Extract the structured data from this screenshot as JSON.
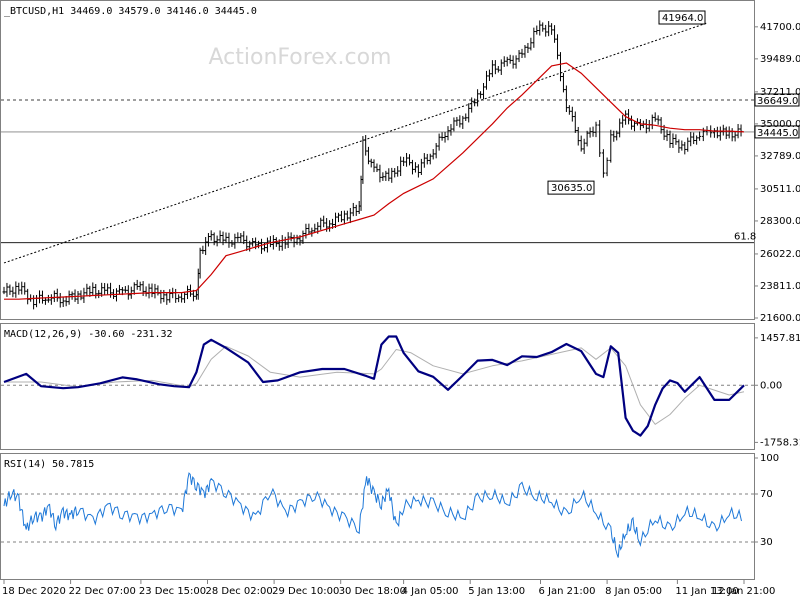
{
  "chart_data": [
    {
      "type": "candlestick",
      "panel": "price",
      "title": "_BTCUSD,H1  34469.0 34579.0 34146.0 34445.0",
      "watermark": "ActionForex.com",
      "y_ticks": [
        41700.0,
        39489.0,
        37211.0,
        35000.0,
        32789.0,
        30511.0,
        28300.0,
        26022.0,
        23811.0,
        21600.0
      ],
      "ylim": [
        21600,
        43000
      ],
      "annotations": [
        {
          "label": "41964.0",
          "x": 95.0,
          "y": 41964
        },
        {
          "label": "30635.0",
          "x": 80.0,
          "y": 30635
        }
      ],
      "price_labels": [
        {
          "label": "36649.0",
          "y": 36649
        },
        {
          "label": "34445.0",
          "y": 34445
        }
      ],
      "fib_label": "61.8",
      "fib_level": 26800,
      "trendline": [
        [
          0,
          25400
        ],
        [
          95,
          41964
        ]
      ],
      "series": [
        {
          "name": "Close",
          "x": [
            0,
            2,
            4,
            6,
            8,
            10,
            12,
            14,
            16,
            18,
            20,
            22,
            24,
            26,
            26.5,
            28,
            30,
            32,
            34,
            36,
            38,
            40,
            42,
            44,
            46,
            48,
            48.5,
            50,
            52,
            54,
            56,
            58,
            60,
            62,
            64,
            66,
            68,
            70,
            72,
            74,
            76,
            78,
            80,
            81,
            82,
            84,
            86,
            88,
            90,
            92,
            94,
            95,
            96,
            98,
            100
          ],
          "values": [
            23400,
            23700,
            22800,
            23100,
            22900,
            23200,
            23500,
            23400,
            23300,
            23700,
            23400,
            23100,
            23200,
            23400,
            26300,
            27200,
            26900,
            27000,
            26500,
            26700,
            26900,
            27200,
            28000,
            28200,
            28700,
            29100,
            33600,
            31800,
            31200,
            32500,
            31900,
            33200,
            34700,
            35400,
            36900,
            38800,
            39200,
            39700,
            41500,
            41700,
            36400,
            33500,
            35000,
            31500,
            34000,
            35400,
            34700,
            35300,
            33800,
            33500,
            34400,
            34700,
            34500,
            34300,
            34445
          ]
        },
        {
          "name": "MA",
          "x": [
            0,
            2,
            4,
            6,
            8,
            10,
            12,
            14,
            16,
            18,
            20,
            22,
            24,
            26,
            28,
            30,
            32,
            34,
            36,
            38,
            40,
            42,
            44,
            46,
            48,
            50,
            52,
            54,
            56,
            58,
            60,
            62,
            64,
            66,
            68,
            70,
            72,
            74,
            76,
            78,
            80,
            82,
            84,
            86,
            88,
            90,
            92,
            94,
            96,
            98,
            100
          ],
          "values": [
            22900,
            22900,
            22950,
            23000,
            23050,
            23100,
            23150,
            23200,
            23250,
            23300,
            23350,
            23350,
            23350,
            23500,
            24600,
            25900,
            26200,
            26500,
            26800,
            27000,
            27200,
            27500,
            27800,
            28100,
            28400,
            28700,
            29500,
            30200,
            30700,
            31200,
            32100,
            33000,
            34000,
            35000,
            36100,
            37000,
            38000,
            39000,
            39200,
            38500,
            37500,
            36500,
            35500,
            35000,
            34900,
            34700,
            34600,
            34600,
            34500,
            34500,
            34450
          ]
        }
      ],
      "x_ticks": [
        "18 Dec 2020",
        "22 Dec 07:00",
        "23 Dec 15:00",
        "28 Dec 02:00",
        "29 Dec 10:00",
        "30 Dec 18:00",
        "4 Jan 05:00",
        "5 Jan 13:00",
        "6 Jan 21:00",
        "8 Jan 05:00",
        "11 Jan 13:00",
        "12 Jan 21:00"
      ],
      "x_tick_positions": [
        0,
        9,
        18.5,
        27.5,
        36.5,
        45.5,
        54,
        63,
        72.5,
        81.5,
        91,
        100
      ]
    },
    {
      "type": "line",
      "panel": "macd",
      "title": "MACD(12,26,9) -30.60 -231.32",
      "y_ticks": [
        1457.81,
        0.0,
        -1758.31
      ],
      "ylim": [
        -1900,
        1700
      ],
      "series": [
        {
          "name": "MACD",
          "x": [
            0,
            3,
            5,
            8,
            10,
            13,
            16,
            18,
            21,
            23,
            25,
            26,
            27,
            28,
            30,
            33,
            35,
            37,
            40,
            43,
            46,
            49,
            50,
            51,
            52,
            53,
            54,
            56,
            58,
            60,
            62,
            64,
            66,
            68,
            70,
            72,
            74,
            76,
            78,
            80,
            81,
            82,
            83,
            84,
            85,
            86,
            87,
            88,
            89,
            90,
            91,
            92,
            94,
            96,
            98,
            100
          ],
          "values": [
            100,
            350,
            -30,
            -90,
            -60,
            60,
            240,
            180,
            30,
            -30,
            -60,
            400,
            1250,
            1400,
            1150,
            700,
            100,
            150,
            400,
            500,
            500,
            280,
            200,
            1250,
            1500,
            1500,
            1000,
            430,
            260,
            -140,
            300,
            760,
            780,
            620,
            890,
            870,
            1020,
            1270,
            1050,
            350,
            250,
            1200,
            1000,
            -1000,
            -1400,
            -1550,
            -1250,
            -600,
            -100,
            150,
            70,
            -200,
            250,
            -450,
            -450,
            0
          ]
        },
        {
          "name": "Signal",
          "x": [
            0,
            5,
            10,
            15,
            20,
            25,
            26,
            28,
            30,
            33,
            36,
            40,
            45,
            50,
            51,
            53,
            55,
            58,
            62,
            66,
            70,
            74,
            78,
            80,
            82,
            84,
            86,
            88,
            90,
            92,
            94,
            96,
            98,
            100
          ],
          "values": [
            100,
            100,
            -50,
            100,
            150,
            -50,
            50,
            800,
            1200,
            900,
            400,
            250,
            400,
            350,
            500,
            1100,
            1000,
            600,
            350,
            600,
            750,
            950,
            1150,
            800,
            1150,
            600,
            -600,
            -1200,
            -900,
            -400,
            0,
            -150,
            -300,
            -200
          ]
        }
      ],
      "zero_line": 0.0
    },
    {
      "type": "line",
      "panel": "rsi",
      "title": "RSI(14) 50.7815",
      "y_ticks": [
        100,
        70,
        30
      ],
      "ylim": [
        0,
        100
      ],
      "levels": [
        70,
        30
      ],
      "series": [
        {
          "name": "RSI",
          "x": [
            0,
            1,
            2,
            3,
            4,
            5,
            6,
            7,
            8,
            9,
            10,
            12,
            14,
            16,
            18,
            20,
            22,
            24,
            25,
            26,
            27,
            28,
            30,
            32,
            34,
            36,
            38,
            40,
            42,
            44,
            46,
            48,
            49,
            50,
            51,
            52,
            53,
            54,
            56,
            58,
            60,
            62,
            64,
            66,
            68,
            70,
            72,
            74,
            76,
            78,
            80,
            82,
            83,
            84,
            85,
            86,
            88,
            90,
            92,
            94,
            96,
            98,
            100
          ],
          "values": [
            60,
            72,
            65,
            40,
            52,
            50,
            60,
            45,
            55,
            52,
            58,
            48,
            60,
            54,
            50,
            52,
            60,
            55,
            85,
            78,
            70,
            80,
            72,
            60,
            50,
            74,
            55,
            62,
            70,
            58,
            50,
            42,
            84,
            70,
            62,
            74,
            42,
            60,
            65,
            62,
            55,
            50,
            66,
            70,
            62,
            75,
            68,
            64,
            52,
            70,
            55,
            38,
            20,
            38,
            45,
            30,
            50,
            40,
            55,
            52,
            40,
            54,
            50
          ]
        }
      ]
    }
  ]
}
